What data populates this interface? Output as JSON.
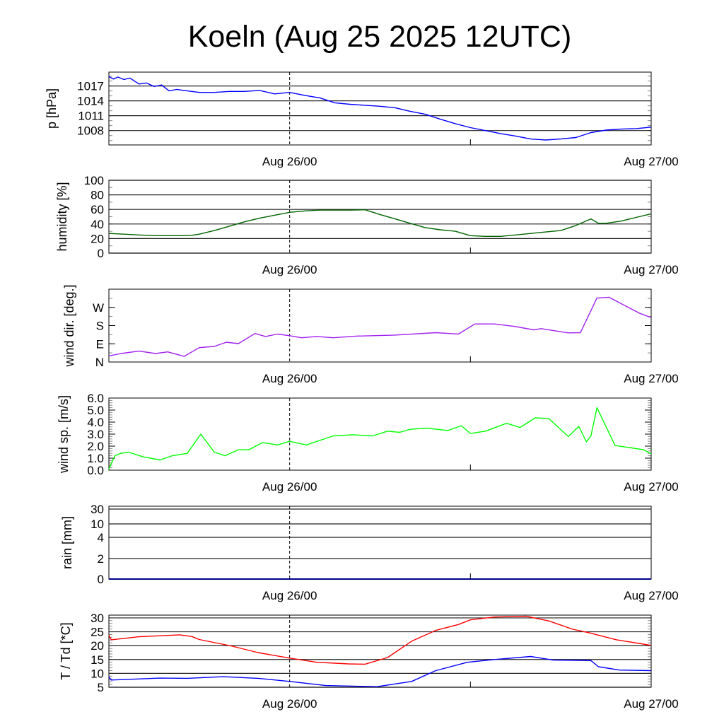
{
  "chart_data": {
    "type": "line",
    "title": "Koeln (Aug 25 2025 12UTC)",
    "x_unit": "hours since Aug 25 12UTC",
    "xlim": [
      0,
      36
    ],
    "x_ticks": [
      {
        "h": 12,
        "label": "Aug 26/00"
      },
      {
        "h": 36,
        "label": "Aug 27/00"
      }
    ],
    "panels": [
      {
        "id": "pressure",
        "ylabel": "p [hPa]",
        "ylim": [
          1005.1,
          1019.8
        ],
        "grid": true,
        "ticks": [
          {
            "v": 1017,
            "label": "1017"
          },
          {
            "v": 1014,
            "label": "1014"
          },
          {
            "v": 1011,
            "label": "1011"
          },
          {
            "v": 1008,
            "label": "1008"
          }
        ],
        "series": [
          {
            "name": "pressure",
            "color": "#0000ff",
            "points": [
              [
                0,
                1018.9
              ],
              [
                0.3,
                1018.4
              ],
              [
                0.6,
                1018.8
              ],
              [
                1,
                1018.3
              ],
              [
                1.4,
                1018.6
              ],
              [
                2,
                1017.4
              ],
              [
                2.5,
                1017.6
              ],
              [
                3,
                1016.9
              ],
              [
                3.5,
                1017.2
              ],
              [
                4,
                1016.0
              ],
              [
                4.5,
                1016.3
              ],
              [
                5,
                1016.1
              ],
              [
                6,
                1015.7
              ],
              [
                7,
                1015.7
              ],
              [
                8,
                1015.9
              ],
              [
                9,
                1015.9
              ],
              [
                10,
                1016.1
              ],
              [
                11,
                1015.4
              ],
              [
                12,
                1015.7
              ],
              [
                13,
                1015.1
              ],
              [
                14,
                1014.6
              ],
              [
                15,
                1013.6
              ],
              [
                16,
                1013.3
              ],
              [
                17,
                1013.1
              ],
              [
                18,
                1012.9
              ],
              [
                19,
                1012.6
              ],
              [
                20,
                1011.9
              ],
              [
                21,
                1011.3
              ],
              [
                22,
                1010.3
              ],
              [
                23,
                1009.4
              ],
              [
                24,
                1008.6
              ],
              [
                25,
                1008.0
              ],
              [
                26,
                1007.4
              ],
              [
                27,
                1006.9
              ],
              [
                28,
                1006.3
              ],
              [
                29,
                1006.1
              ],
              [
                30,
                1006.3
              ],
              [
                31,
                1006.6
              ],
              [
                32,
                1007.6
              ],
              [
                33,
                1008.1
              ],
              [
                34,
                1008.3
              ],
              [
                35,
                1008.4
              ],
              [
                36,
                1008.7
              ]
            ]
          }
        ]
      },
      {
        "id": "humidity",
        "ylabel": "humidity [%]",
        "ylim": [
          0,
          100
        ],
        "grid": true,
        "ticks": [
          {
            "v": 0,
            "label": "0"
          },
          {
            "v": 20,
            "label": "20"
          },
          {
            "v": 40,
            "label": "40"
          },
          {
            "v": 60,
            "label": "60"
          },
          {
            "v": 80,
            "label": "80"
          },
          {
            "v": 100,
            "label": "100"
          }
        ],
        "series": [
          {
            "name": "humidity",
            "color": "#006400",
            "points": [
              [
                0,
                27
              ],
              [
                1,
                26
              ],
              [
                2,
                25
              ],
              [
                3,
                24
              ],
              [
                4,
                24
              ],
              [
                5,
                24
              ],
              [
                5.5,
                24.5
              ],
              [
                6,
                26
              ],
              [
                7,
                31
              ],
              [
                8,
                37
              ],
              [
                9,
                43
              ],
              [
                10,
                48
              ],
              [
                11,
                52
              ],
              [
                12,
                56
              ],
              [
                13,
                58
              ],
              [
                14,
                59
              ],
              [
                15,
                59
              ],
              [
                16,
                59
              ],
              [
                17,
                59.5
              ],
              [
                18,
                53
              ],
              [
                19,
                47
              ],
              [
                20,
                41
              ],
              [
                21,
                35
              ],
              [
                22,
                32
              ],
              [
                23,
                30
              ],
              [
                24,
                24
              ],
              [
                25,
                23
              ],
              [
                26,
                23
              ],
              [
                27,
                25
              ],
              [
                28,
                27
              ],
              [
                29,
                29
              ],
              [
                30,
                31
              ],
              [
                31,
                38
              ],
              [
                32,
                47
              ],
              [
                32.5,
                41
              ],
              [
                33,
                41
              ],
              [
                34,
                44
              ],
              [
                35,
                49
              ],
              [
                36,
                54
              ]
            ]
          }
        ]
      },
      {
        "id": "wind_direction",
        "ylabel": "wind dir. [deg.]",
        "ylim": [
          0,
          360
        ],
        "grid": false,
        "ticks": [
          {
            "v": 0,
            "label": "N"
          },
          {
            "v": 90,
            "label": "E"
          },
          {
            "v": 180,
            "label": "S"
          },
          {
            "v": 270,
            "label": "W"
          }
        ],
        "series": [
          {
            "name": "wind direction",
            "color": "#a020f0",
            "points": [
              [
                0,
                30
              ],
              [
                0.8,
                42
              ],
              [
                2,
                54
              ],
              [
                3.1,
                42
              ],
              [
                3.9,
                50
              ],
              [
                5,
                28
              ],
              [
                6,
                71
              ],
              [
                7,
                77
              ],
              [
                7.8,
                98
              ],
              [
                8.6,
                91
              ],
              [
                9.7,
                141
              ],
              [
                10.4,
                126
              ],
              [
                11.2,
                138
              ],
              [
                12,
                130
              ],
              [
                12.8,
                120
              ],
              [
                13.8,
                126
              ],
              [
                14.9,
                120
              ],
              [
                16.4,
                128
              ],
              [
                19,
                133
              ],
              [
                21.7,
                145
              ],
              [
                23.2,
                138
              ],
              [
                24.3,
                188
              ],
              [
                25.6,
                188
              ],
              [
                26.9,
                176
              ],
              [
                28.2,
                159
              ],
              [
                28.7,
                165
              ],
              [
                30.5,
                144
              ],
              [
                31.3,
                145
              ],
              [
                32.4,
                316
              ],
              [
                33.2,
                320
              ],
              [
                34.2,
                281
              ],
              [
                35.2,
                242
              ],
              [
                36,
                220
              ]
            ]
          }
        ]
      },
      {
        "id": "wind_speed",
        "ylabel": "wind sp. [m/s]",
        "ylim": [
          0,
          6
        ],
        "grid": false,
        "ticks": [
          {
            "v": 0,
            "label": "0.0"
          },
          {
            "v": 1,
            "label": "1.0"
          },
          {
            "v": 2,
            "label": "2.0"
          },
          {
            "v": 3,
            "label": "3.0"
          },
          {
            "v": 4,
            "label": "4.0"
          },
          {
            "v": 5,
            "label": "5.0"
          },
          {
            "v": 6,
            "label": "6.0"
          }
        ],
        "series": [
          {
            "name": "wind speed",
            "color": "#00ff00",
            "points": [
              [
                0,
                0.1
              ],
              [
                0.4,
                1.2
              ],
              [
                0.8,
                1.4
              ],
              [
                1.3,
                1.5
              ],
              [
                2.3,
                1.1
              ],
              [
                3.4,
                0.85
              ],
              [
                4.2,
                1.2
              ],
              [
                5.2,
                1.4
              ],
              [
                6.1,
                3.0
              ],
              [
                7,
                1.5
              ],
              [
                7.7,
                1.2
              ],
              [
                8.6,
                1.7
              ],
              [
                9.3,
                1.7
              ],
              [
                10.2,
                2.3
              ],
              [
                11.2,
                2.1
              ],
              [
                12,
                2.4
              ],
              [
                13.1,
                2.1
              ],
              [
                14.9,
                2.85
              ],
              [
                16.2,
                2.95
              ],
              [
                17.5,
                2.85
              ],
              [
                18.5,
                3.25
              ],
              [
                19.3,
                3.15
              ],
              [
                20,
                3.4
              ],
              [
                21.1,
                3.5
              ],
              [
                22.5,
                3.3
              ],
              [
                23.4,
                3.7
              ],
              [
                24,
                3.05
              ],
              [
                25,
                3.25
              ],
              [
                26.4,
                3.9
              ],
              [
                27.3,
                3.55
              ],
              [
                28.3,
                4.35
              ],
              [
                29.2,
                4.3
              ],
              [
                30.5,
                2.8
              ],
              [
                31.2,
                3.65
              ],
              [
                31.7,
                2.35
              ],
              [
                32,
                2.85
              ],
              [
                32.4,
                5.2
              ],
              [
                33.6,
                2.05
              ],
              [
                34.7,
                1.85
              ],
              [
                35.5,
                1.7
              ],
              [
                36,
                1.35
              ]
            ]
          }
        ]
      },
      {
        "id": "rain",
        "ylabel": "rain [mm]",
        "ylim": [
          0,
          30
        ],
        "grid": true,
        "scale": "custom",
        "ticks": [
          {
            "v": 0,
            "label": "0"
          },
          {
            "v": 2,
            "label": "2"
          },
          {
            "v": 4,
            "label": "4"
          },
          {
            "v": 10,
            "label": "10"
          },
          {
            "v": 30,
            "label": "30"
          }
        ],
        "series": [
          {
            "name": "rain",
            "color": "#00008b",
            "points": [
              [
                0,
                0
              ],
              [
                36,
                0
              ]
            ]
          }
        ]
      },
      {
        "id": "temperature",
        "ylabel": "T / Td [*C]",
        "ylim": [
          5,
          31
        ],
        "grid": true,
        "ticks": [
          {
            "v": 5,
            "label": "5"
          },
          {
            "v": 10,
            "label": "10"
          },
          {
            "v": 15,
            "label": "15"
          },
          {
            "v": 20,
            "label": "20"
          },
          {
            "v": 25,
            "label": "25"
          },
          {
            "v": 30,
            "label": "30"
          }
        ],
        "series": [
          {
            "name": "T",
            "color": "#ff0000",
            "points": [
              [
                0,
                23.8
              ],
              [
                0.15,
                22.1
              ],
              [
                2,
                23.2
              ],
              [
                4.7,
                23.9
              ],
              [
                5.5,
                23.3
              ],
              [
                6,
                22.2
              ],
              [
                8.1,
                19.9
              ],
              [
                9.9,
                17.5
              ],
              [
                12,
                15.5
              ],
              [
                13.8,
                14
              ],
              [
                15.9,
                13.4
              ],
              [
                17,
                13.3
              ],
              [
                18.5,
                15.7
              ],
              [
                20.1,
                21.6
              ],
              [
                21.7,
                25.5
              ],
              [
                23.2,
                27.6
              ],
              [
                24,
                29.3
              ],
              [
                25.6,
                30.3
              ],
              [
                27.7,
                30.6
              ],
              [
                29.2,
                28.9
              ],
              [
                30.8,
                25.9
              ],
              [
                31.9,
                24.6
              ],
              [
                33.7,
                22.1
              ],
              [
                36,
                20.1
              ]
            ]
          },
          {
            "name": "Td",
            "color": "#0000ff",
            "points": [
              [
                0,
                8.8
              ],
              [
                0.15,
                7.6
              ],
              [
                3.4,
                8.3
              ],
              [
                5.2,
                8.2
              ],
              [
                7.6,
                8.8
              ],
              [
                9.9,
                8.2
              ],
              [
                12,
                7.1
              ],
              [
                14.4,
                5.6
              ],
              [
                17.8,
                5.2
              ],
              [
                20.1,
                7.1
              ],
              [
                21.7,
                11
              ],
              [
                23.8,
                14
              ],
              [
                25.6,
                15
              ],
              [
                28,
                16.1
              ],
              [
                29.5,
                14.8
              ],
              [
                32,
                14.6
              ],
              [
                32.5,
                12.4
              ],
              [
                33.9,
                11.2
              ],
              [
                36,
                11
              ]
            ]
          }
        ]
      }
    ]
  }
}
